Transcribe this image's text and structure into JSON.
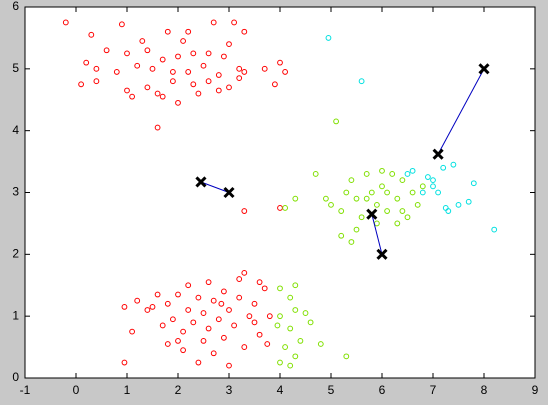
{
  "chart_data": {
    "type": "scatter",
    "xlim": [
      -1,
      9
    ],
    "ylim": [
      0,
      6
    ],
    "xticks": [
      -1,
      0,
      1,
      2,
      3,
      4,
      5,
      6,
      7,
      8,
      9
    ],
    "yticks": [
      0,
      1,
      2,
      3,
      4,
      5,
      6
    ],
    "series": [
      {
        "color": "#ff0000",
        "x": [
          -0.2,
          0.3,
          0.9,
          1.8,
          2.2,
          2.7,
          3.1,
          3.3,
          0.6,
          1.0,
          1.4,
          1.7,
          2.0,
          2.3,
          2.6,
          2.9,
          3.2,
          0.4,
          0.8,
          1.2,
          1.5,
          1.9,
          2.2,
          2.5,
          2.8,
          3.3,
          3.7,
          4.0,
          0.1,
          0.4,
          1.0,
          1.4,
          1.6,
          1.9,
          2.3,
          2.6,
          3.0,
          3.2,
          3.9,
          1.1,
          1.7,
          2.0,
          2.4,
          2.8,
          1.6,
          0.2,
          1.3,
          2.1,
          3.0,
          4.1,
          0.95,
          0.95,
          1.1,
          1.4,
          1.6,
          1.7,
          1.8,
          1.9,
          2.0,
          2.1,
          2.1,
          2.2,
          2.3,
          2.4,
          2.5,
          2.5,
          2.6,
          2.7,
          2.8,
          2.9,
          2.9,
          3.0,
          3.1,
          3.2,
          3.3,
          3.4,
          3.5,
          3.6,
          3.7,
          3.3,
          3.2,
          2.7,
          1.8,
          1.5,
          3.8,
          2.4,
          3.0,
          2.2,
          2.6,
          3.5,
          1.2,
          3.75,
          2.0,
          3.6,
          2.85,
          3.3,
          4.0
        ],
        "y": [
          5.75,
          5.55,
          5.72,
          5.6,
          5.6,
          5.75,
          5.75,
          5.6,
          5.3,
          5.25,
          5.3,
          5.15,
          5.2,
          5.25,
          5.25,
          5.2,
          5.0,
          5.0,
          4.95,
          5.05,
          5.0,
          4.95,
          4.95,
          5.05,
          4.9,
          4.95,
          5.0,
          5.1,
          4.75,
          4.8,
          4.65,
          4.7,
          4.6,
          4.8,
          4.75,
          4.8,
          4.7,
          4.85,
          4.75,
          4.55,
          4.55,
          4.45,
          4.6,
          4.65,
          4.05,
          5.1,
          5.45,
          5.45,
          5.4,
          4.95,
          0.25,
          1.15,
          0.75,
          1.1,
          1.35,
          0.85,
          1.2,
          0.95,
          1.35,
          0.75,
          0.45,
          1.1,
          0.9,
          1.3,
          0.6,
          1.05,
          0.8,
          1.25,
          0.95,
          0.65,
          1.4,
          1.1,
          0.85,
          1.3,
          0.5,
          1.0,
          1.2,
          0.7,
          1.45,
          1.7,
          1.6,
          0.4,
          0.55,
          1.15,
          1.0,
          0.25,
          0.2,
          1.5,
          1.55,
          0.9,
          1.25,
          0.55,
          0.6,
          1.55,
          1.2,
          2.7,
          2.75
        ]
      },
      {
        "color": "#80e000",
        "x": [
          5.0,
          5.2,
          5.3,
          5.4,
          5.5,
          5.6,
          5.7,
          5.8,
          5.9,
          6.0,
          6.1,
          6.2,
          6.3,
          6.4,
          6.5,
          6.6,
          6.7,
          6.8,
          5.5,
          5.9,
          6.3,
          5.2,
          4.3,
          4.7,
          5.1,
          5.4,
          6.0,
          5.7,
          6.4,
          4.1,
          4.9,
          6.1,
          4.0,
          4.2,
          4.3,
          4.0,
          4.2,
          4.4,
          4.1,
          4.5,
          4.6,
          4.3,
          4.8,
          4.0,
          5.3,
          4.2,
          3.95,
          4.3
        ],
        "y": [
          2.8,
          2.7,
          3.0,
          3.2,
          2.9,
          2.6,
          3.3,
          3.0,
          2.8,
          3.1,
          2.7,
          3.3,
          2.9,
          3.2,
          2.6,
          3.0,
          2.8,
          3.1,
          2.4,
          2.5,
          2.5,
          2.3,
          2.9,
          3.3,
          4.15,
          2.2,
          3.35,
          2.9,
          2.7,
          2.75,
          2.9,
          3.0,
          1.45,
          1.3,
          1.1,
          1.0,
          0.8,
          0.6,
          0.5,
          1.05,
          0.9,
          0.35,
          0.55,
          0.25,
          0.35,
          0.2,
          0.85,
          1.5
        ]
      },
      {
        "color": "#00e0e0",
        "x": [
          4.95,
          5.6,
          7.0,
          6.5,
          6.8,
          7.2,
          7.4,
          7.1,
          7.5,
          7.7,
          7.8,
          8.2,
          7.25,
          7.0,
          6.9,
          6.6,
          7.3
        ],
        "y": [
          5.5,
          4.8,
          3.2,
          3.3,
          3.0,
          3.4,
          3.45,
          3.0,
          2.8,
          2.85,
          3.15,
          2.4,
          2.75,
          3.1,
          3.25,
          3.35,
          2.7
        ]
      }
    ],
    "centroid_paths": [
      {
        "x": [
          3,
          2.45
        ],
        "y": [
          3,
          3.17
        ]
      },
      {
        "x": [
          6,
          5.8
        ],
        "y": [
          2,
          2.65
        ]
      },
      {
        "x": [
          8,
          7.1
        ],
        "y": [
          5,
          3.62
        ]
      }
    ],
    "path_color": "#0000c0",
    "centroid_color": "#000000"
  }
}
